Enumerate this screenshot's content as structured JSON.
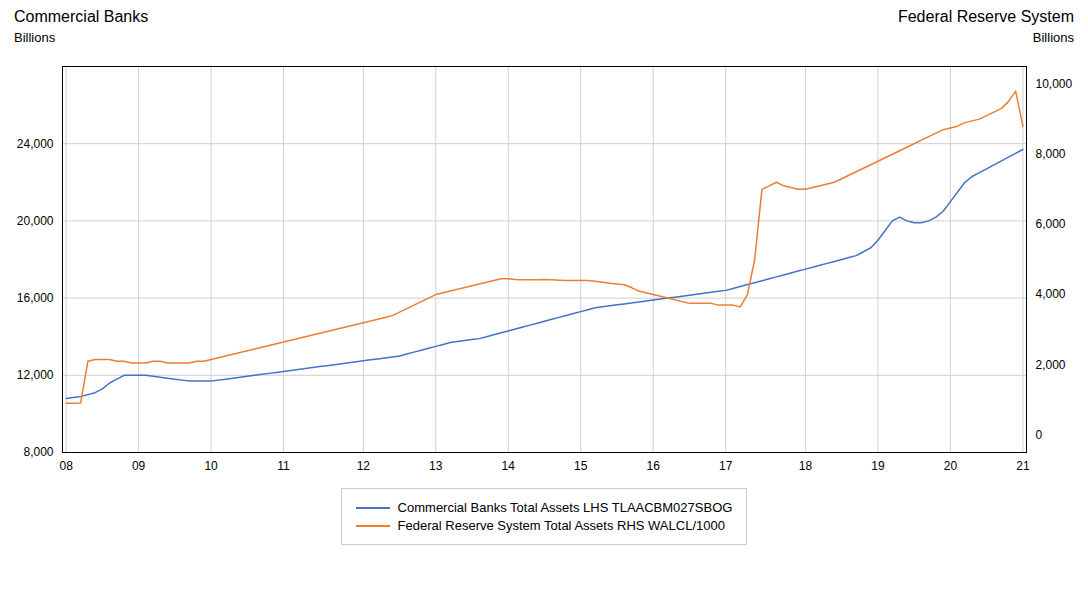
{
  "chart_data": {
    "type": "line",
    "ylabel": "Billions",
    "y2label": "Billions",
    "annotations": [
      {
        "text": "Commercial Banks",
        "axis": "y"
      },
      {
        "text": "Federal Reserve System",
        "axis": "y2"
      }
    ],
    "ylim": [
      8000,
      28000
    ],
    "yticks": [
      {
        "value": 8000,
        "label": "8,000"
      },
      {
        "value": 12000,
        "label": "12,000"
      },
      {
        "value": 16000,
        "label": "16,000"
      },
      {
        "value": 20000,
        "label": "20,000"
      },
      {
        "value": 24000,
        "label": "24,000"
      }
    ],
    "y2lim": [
      -500,
      10500
    ],
    "y2ticks": [
      0,
      {
        "value": 2000,
        "label": "2,000"
      },
      {
        "value": 4000,
        "label": "4,000"
      },
      {
        "value": 6000,
        "label": "6,000"
      },
      {
        "value": 8000,
        "label": "8,000"
      },
      {
        "value": 10000,
        "label": "10,000"
      }
    ],
    "grid": true,
    "categories": [
      "08",
      null,
      null,
      null,
      null,
      null,
      null,
      null,
      null,
      null,
      "09",
      null,
      null,
      null,
      null,
      null,
      null,
      null,
      null,
      null,
      "10",
      null,
      null,
      null,
      null,
      null,
      null,
      null,
      null,
      null,
      "11",
      null,
      null,
      null,
      null,
      null,
      null,
      null,
      null,
      null,
      null,
      "12",
      null,
      null,
      null,
      null,
      null,
      null,
      null,
      null,
      null,
      "13",
      null,
      null,
      null,
      null,
      null,
      null,
      null,
      null,
      null,
      "14",
      null,
      null,
      null,
      null,
      null,
      null,
      null,
      null,
      null,
      "15",
      null,
      null,
      null,
      null,
      null,
      null,
      null,
      null,
      null,
      "16",
      null,
      null,
      null,
      null,
      null,
      null,
      null,
      null,
      null,
      "17",
      null,
      null,
      null,
      null,
      null,
      null,
      null,
      null,
      null,
      null,
      "18",
      null,
      null,
      null,
      null,
      null,
      null,
      null,
      null,
      null,
      "19",
      null,
      null,
      null,
      null,
      null,
      null,
      null,
      null,
      null,
      "20",
      null,
      null,
      null,
      null,
      null,
      null,
      null,
      null,
      null,
      "21"
    ],
    "series": [
      {
        "name": "Commercial Banks Total Assets LHS TLAACBM027SBOG",
        "color": "#4472C4",
        "axis": "y",
        "values": [
          10800,
          10850,
          10900,
          11000,
          11100,
          11300,
          11600,
          11800,
          12000,
          12000,
          12000,
          12000,
          11950,
          11900,
          11850,
          11800,
          11750,
          11700,
          11700,
          11700,
          11700,
          11750,
          11800,
          11850,
          11900,
          11950,
          12000,
          12050,
          12100,
          12150,
          12200,
          12250,
          12300,
          12350,
          12400,
          12450,
          12500,
          12550,
          12600,
          12650,
          12700,
          12750,
          12800,
          12850,
          12900,
          12950,
          13000,
          13100,
          13200,
          13300,
          13400,
          13500,
          13600,
          13700,
          13750,
          13800,
          13850,
          13900,
          14000,
          14100,
          14200,
          14300,
          14400,
          14500,
          14600,
          14700,
          14800,
          14900,
          15000,
          15100,
          15200,
          15300,
          15400,
          15500,
          15550,
          15600,
          15650,
          15700,
          15750,
          15800,
          15850,
          15900,
          15950,
          16000,
          16050,
          16100,
          16150,
          16200,
          16250,
          16300,
          16350,
          16400,
          16500,
          16600,
          16700,
          16800,
          16900,
          17000,
          17100,
          17200,
          17300,
          17400,
          17500,
          17600,
          17700,
          17800,
          17900,
          18000,
          18100,
          18200,
          18400,
          18600,
          19000,
          19500,
          20000,
          20200,
          20000,
          19900,
          19900,
          20000,
          20200,
          20500,
          21000,
          21500,
          22000,
          22300,
          22500,
          22700,
          22900,
          23100,
          23300,
          23500,
          23700
        ]
      },
      {
        "name": "Federal Reserve System Total Assets RHS WALCL/1000",
        "color": "#ED7D31",
        "axis": "y2",
        "values": [
          900,
          900,
          910,
          2100,
          2150,
          2150,
          2150,
          2100,
          2100,
          2050,
          2050,
          2050,
          2100,
          2100,
          2050,
          2050,
          2050,
          2050,
          2100,
          2100,
          2150,
          2200,
          2250,
          2300,
          2350,
          2400,
          2450,
          2500,
          2550,
          2600,
          2650,
          2700,
          2750,
          2800,
          2850,
          2900,
          2950,
          3000,
          3050,
          3100,
          3150,
          3200,
          3250,
          3300,
          3350,
          3400,
          3500,
          3600,
          3700,
          3800,
          3900,
          4000,
          4050,
          4100,
          4150,
          4200,
          4250,
          4300,
          4350,
          4400,
          4450,
          4450,
          4430,
          4420,
          4420,
          4420,
          4430,
          4420,
          4410,
          4400,
          4400,
          4400,
          4400,
          4380,
          4350,
          4320,
          4300,
          4280,
          4200,
          4100,
          4050,
          4000,
          3950,
          3900,
          3850,
          3800,
          3750,
          3750,
          3750,
          3750,
          3700,
          3700,
          3700,
          3650,
          4000,
          5000,
          7000,
          7100,
          7200,
          7100,
          7050,
          7000,
          7000,
          7050,
          7100,
          7150,
          7200,
          7300,
          7400,
          7500,
          7600,
          7700,
          7800,
          7900,
          8000,
          8100,
          8200,
          8300,
          8400,
          8500,
          8600,
          8700,
          8750,
          8800,
          8900,
          8950,
          9000,
          9100,
          9200,
          9300,
          9500,
          9800,
          8800
        ]
      }
    ]
  }
}
